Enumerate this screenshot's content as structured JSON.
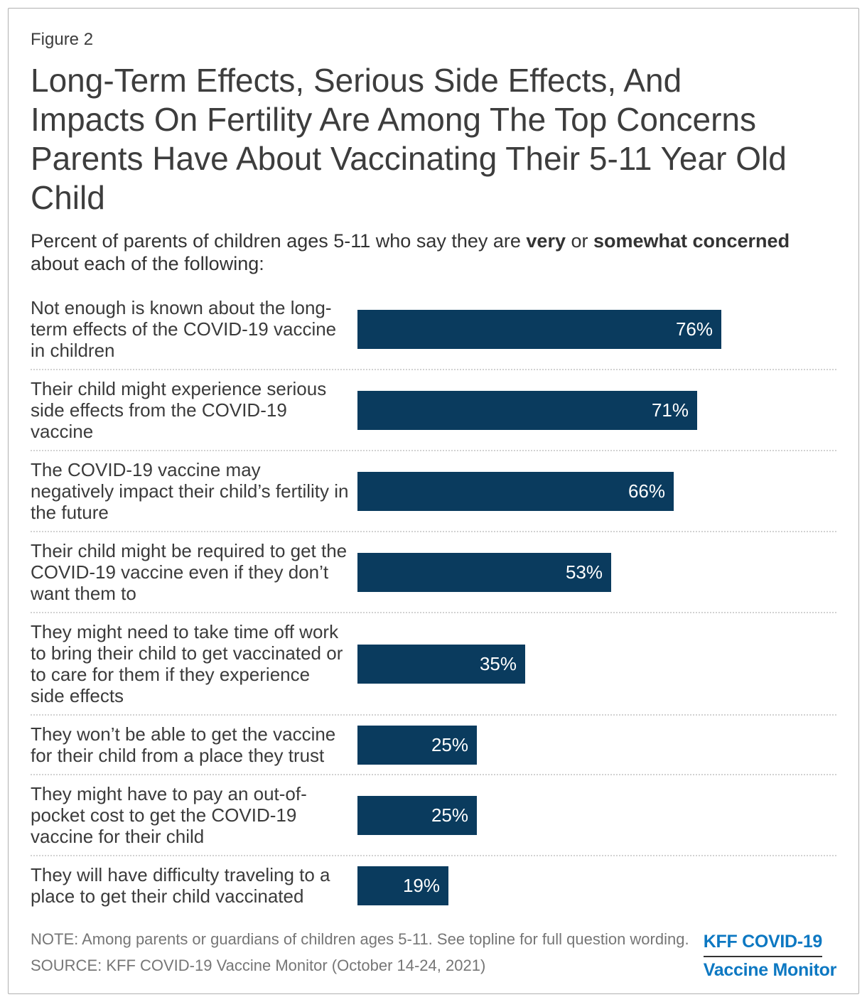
{
  "figure_label": "Figure 2",
  "title": "Long-Term Effects, Serious Side Effects, And Impacts On Fertility Are Among The Top Concerns Parents Have About Vaccinating Their 5-11 Year Old Child",
  "subtitle": {
    "prefix": "Percent of parents of children ages 5-11 who say they are ",
    "bold1": "very",
    "mid": " or ",
    "bold2": "somewhat concerned",
    "suffix": " about each of the following:"
  },
  "chart_data": {
    "type": "bar",
    "orientation": "horizontal",
    "xlim": [
      0,
      100
    ],
    "grid": false,
    "legend": false,
    "bar_color": "#0a3b5e",
    "value_label_color": "#ffffff",
    "value_label_position": "inside-right",
    "categories": [
      "Not enough is known about the long-term effects of the COVID-19 vaccine in children",
      "Their child might experience serious side effects from the COVID-19 vaccine",
      "The COVID-19 vaccine may negatively impact their child’s fertility in the future",
      "Their child might be required to get the COVID-19 vaccine even if they don’t want them to",
      "They might need to take time off work to bring their child to get vaccinated or to care for them if they experience side effects",
      "They won’t be able to get the vaccine for their child from a place they trust",
      "They might have to pay an out-of-pocket cost to get the COVID-19 vaccine for their child",
      "They will have difficulty traveling to a place to get their child vaccinated"
    ],
    "label_lines": [
      [
        "Not enough is known about the long-",
        "term effects of the COVID-19 vaccine",
        "in children"
      ],
      [
        "Their child might experience serious",
        "side effects from the COVID-19",
        "vaccine"
      ],
      [
        "The COVID-19 vaccine may",
        "negatively impact their child’s fertility in",
        "the future"
      ],
      [
        "Their child might be required to get the",
        "COVID-19 vaccine even if they don’t",
        "want them to"
      ],
      [
        "They might need to take time off work",
        "to bring their child to get vaccinated or",
        "to care for them if they experience",
        "side effects"
      ],
      [
        "They won’t be able to get the vaccine",
        "for their child from a place they trust"
      ],
      [
        "They might have to pay an out-of-",
        "pocket cost to get the COVID-19",
        "vaccine for their child"
      ],
      [
        "They will have difficulty traveling to a",
        "place to get their child vaccinated"
      ]
    ],
    "values": [
      76,
      71,
      66,
      53,
      35,
      25,
      25,
      19
    ],
    "value_labels": [
      "76%",
      "71%",
      "66%",
      "53%",
      "35%",
      "25%",
      "25%",
      "19%"
    ]
  },
  "footer": {
    "note": "NOTE: Among parents or guardians of children ages 5-11. See topline for full question wording.",
    "source": "SOURCE: KFF COVID-19 Vaccine Monitor (October 14-24, 2021)",
    "logo_line1": "KFF COVID-19",
    "logo_line2": "Vaccine Monitor",
    "logo_color": "#0d78c2"
  }
}
